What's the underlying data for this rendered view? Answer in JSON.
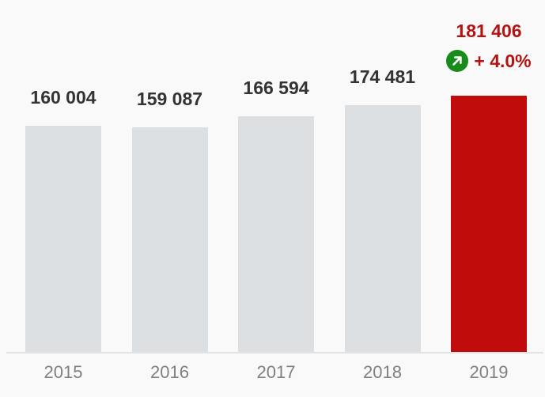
{
  "chart_data": {
    "type": "bar",
    "title": "",
    "xlabel": "",
    "ylabel": "",
    "categories": [
      "2015",
      "2016",
      "2017",
      "2018",
      "2019"
    ],
    "values": [
      160004,
      159087,
      166594,
      174481,
      181406
    ],
    "value_labels": [
      "160 004",
      "159 087",
      "166 594",
      "174 481",
      "181 406"
    ],
    "ylim": [
      0,
      181406
    ],
    "grid": false,
    "legend": false,
    "highlight": {
      "category": "2019",
      "index": 4,
      "value_label": "181 406",
      "growth_label": "+ 4.0%",
      "icon": "arrow-up-right-icon"
    },
    "colors": {
      "background": "#f9f9f9",
      "bar_default": "#dde0e3",
      "bar_highlight": "#c00d0c",
      "value_label_default": "#333333",
      "value_label_highlight": "#b31412",
      "growth_text": "#b31412",
      "badge_green": "#188c1b",
      "badge_arrow": "#ffffff",
      "axis_line": "#e3e3e3",
      "year_label": "#808080"
    }
  }
}
